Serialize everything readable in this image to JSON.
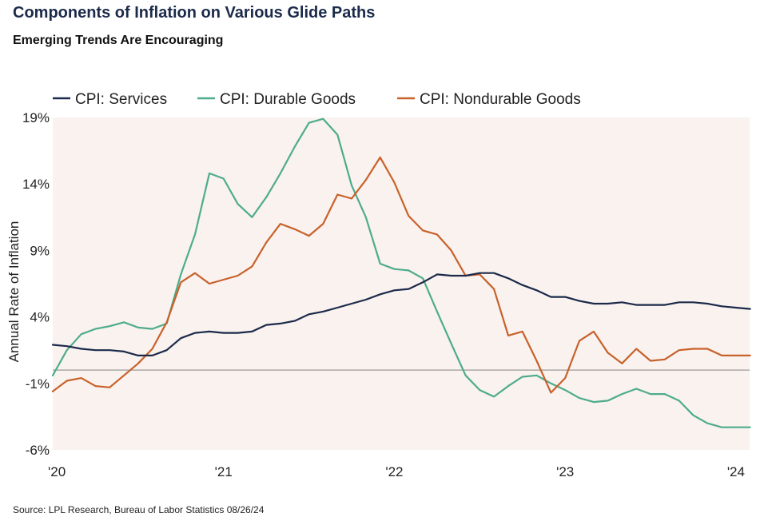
{
  "header": {
    "title": "Components of Inflation on Various Glide Paths",
    "subtitle": "Emerging Trends Are Encouraging"
  },
  "footer": {
    "source": "Source: LPL Research, Bureau of Labor Statistics 08/26/24"
  },
  "colors": {
    "services": "#1b2a4a",
    "durable": "#4dac8c",
    "nondurable": "#c8612a",
    "plot_bg": "#faf2ef",
    "zero_line": "#999999"
  },
  "chart_data": {
    "type": "line",
    "title": "Components of Inflation on Various Glide Paths",
    "subtitle": "Emerging Trends Are Encouraging",
    "xlabel": "",
    "ylabel": "Annual Rate of Inflation",
    "ylim": [
      -6,
      19
    ],
    "xlim": [
      2020.0,
      2024.08
    ],
    "yticks": [
      -6,
      -1,
      4,
      9,
      14,
      19
    ],
    "ytick_labels": [
      "-6%",
      "-1%",
      "4%",
      "9%",
      "14%",
      "19%"
    ],
    "xticks": [
      2020,
      2021,
      2022,
      2023,
      2024
    ],
    "xtick_labels": [
      "'20",
      "'21",
      "'22",
      "'23",
      "'24"
    ],
    "grid": false,
    "reference_line": 0,
    "legend_position": "top",
    "series": [
      {
        "name": "CPI: Services",
        "color": "#1b2a4a",
        "x": [
          2020.0,
          2020.083,
          2020.167,
          2020.25,
          2020.333,
          2020.417,
          2020.5,
          2020.583,
          2020.667,
          2020.75,
          2020.833,
          2020.917,
          2021.0,
          2021.083,
          2021.167,
          2021.25,
          2021.333,
          2021.417,
          2021.5,
          2021.583,
          2021.667,
          2021.75,
          2021.833,
          2021.917,
          2022.0,
          2022.083,
          2022.167,
          2022.25,
          2022.333,
          2022.417,
          2022.5,
          2022.583,
          2022.667,
          2022.75,
          2022.833,
          2022.917,
          2023.0,
          2023.083,
          2023.167,
          2023.25,
          2023.333,
          2023.417,
          2023.5,
          2023.583,
          2023.667,
          2023.75,
          2023.833,
          2023.917,
          2024.0,
          2024.083
        ],
        "values": [
          1.9,
          1.8,
          1.6,
          1.5,
          1.5,
          1.4,
          1.1,
          1.1,
          1.5,
          2.4,
          2.8,
          2.9,
          2.8,
          2.8,
          2.9,
          3.4,
          3.5,
          3.7,
          4.2,
          4.4,
          4.7,
          5.0,
          5.3,
          5.7,
          6.0,
          6.1,
          6.6,
          7.2,
          7.1,
          7.1,
          7.3,
          7.3,
          6.9,
          6.4,
          6.0,
          5.5,
          5.5,
          5.2,
          5.0,
          5.0,
          5.1,
          4.9,
          4.9,
          4.9,
          5.1,
          5.1,
          5.0,
          4.8,
          4.7,
          4.6
        ]
      },
      {
        "name": "CPI: Durable Goods",
        "color": "#4dac8c",
        "x": [
          2020.0,
          2020.083,
          2020.167,
          2020.25,
          2020.333,
          2020.417,
          2020.5,
          2020.583,
          2020.667,
          2020.75,
          2020.833,
          2020.917,
          2021.0,
          2021.083,
          2021.167,
          2021.25,
          2021.333,
          2021.417,
          2021.5,
          2021.583,
          2021.667,
          2021.75,
          2021.833,
          2021.917,
          2022.0,
          2022.083,
          2022.167,
          2022.25,
          2022.333,
          2022.417,
          2022.5,
          2022.583,
          2022.667,
          2022.75,
          2022.833,
          2022.917,
          2023.0,
          2023.083,
          2023.167,
          2023.25,
          2023.333,
          2023.417,
          2023.5,
          2023.583,
          2023.667,
          2023.75,
          2023.833,
          2023.917,
          2024.0,
          2024.083
        ],
        "values": [
          -0.4,
          1.5,
          2.7,
          3.1,
          3.3,
          3.6,
          3.2,
          3.1,
          3.5,
          7.2,
          10.2,
          14.8,
          14.4,
          12.5,
          11.5,
          13.0,
          14.8,
          16.8,
          18.6,
          18.9,
          17.7,
          13.9,
          11.5,
          8.0,
          7.6,
          7.5,
          6.9,
          4.4,
          2.0,
          -0.4,
          -1.5,
          -2.0,
          -1.2,
          -0.5,
          -0.4,
          -1.0,
          -1.5,
          -2.1,
          -2.4,
          -2.3,
          -1.8,
          -1.4,
          -1.8,
          -1.8,
          -2.3,
          -3.4,
          -4.0,
          -4.3,
          -4.3,
          -4.3
        ]
      },
      {
        "name": "CPI: Nondurable Goods",
        "color": "#c8612a",
        "x": [
          2020.0,
          2020.083,
          2020.167,
          2020.25,
          2020.333,
          2020.417,
          2020.5,
          2020.583,
          2020.667,
          2020.75,
          2020.833,
          2020.917,
          2021.0,
          2021.083,
          2021.167,
          2021.25,
          2021.333,
          2021.417,
          2021.5,
          2021.583,
          2021.667,
          2021.75,
          2021.833,
          2021.917,
          2022.0,
          2022.083,
          2022.167,
          2022.25,
          2022.333,
          2022.417,
          2022.5,
          2022.583,
          2022.667,
          2022.75,
          2022.833,
          2022.917,
          2023.0,
          2023.083,
          2023.167,
          2023.25,
          2023.333,
          2023.417,
          2023.5,
          2023.583,
          2023.667,
          2023.75,
          2023.833,
          2023.917,
          2024.0,
          2024.083
        ],
        "values": [
          -1.6,
          -0.8,
          -0.6,
          -1.2,
          -1.3,
          -0.4,
          0.5,
          1.6,
          3.6,
          6.6,
          7.3,
          6.5,
          6.8,
          7.1,
          7.8,
          9.6,
          11.0,
          10.6,
          10.1,
          11.0,
          13.2,
          12.9,
          14.3,
          16.0,
          14.1,
          11.6,
          10.5,
          10.2,
          9.0,
          7.1,
          7.2,
          6.1,
          2.6,
          2.9,
          0.7,
          -1.7,
          -0.6,
          2.2,
          2.9,
          1.3,
          0.5,
          1.6,
          0.7,
          0.8,
          1.5,
          1.6,
          1.6,
          1.1,
          1.1,
          1.1
        ]
      }
    ]
  }
}
